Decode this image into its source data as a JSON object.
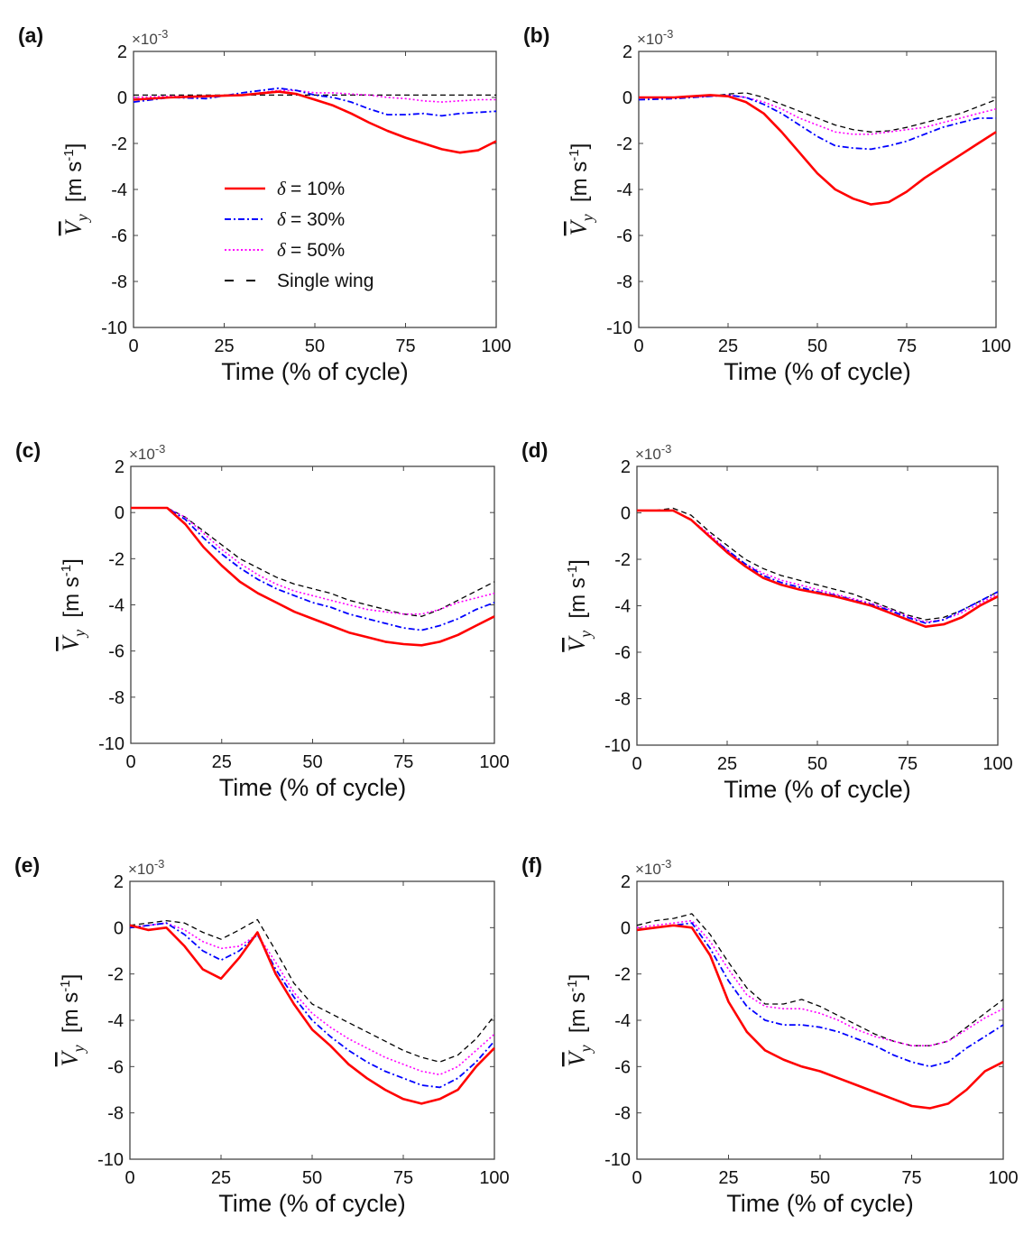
{
  "figure": {
    "x_label": "Time (% of cycle)",
    "y_label_symbol": "V",
    "y_label_subscript": "y",
    "y_label_units": "[m s",
    "y_label_units_exp": "-1",
    "y_label_units_close": "]",
    "multiplier_base": "×10",
    "multiplier_exp": "-3",
    "x_ticks": [
      "0",
      "25",
      "50",
      "75",
      "100"
    ],
    "y_ticks": [
      "2",
      "0",
      "-2",
      "-4",
      "-6",
      "-8",
      "-10"
    ]
  },
  "legend": [
    {
      "symbol": "δ",
      "label": "= 10%",
      "color": "#ff0000",
      "style": "solid"
    },
    {
      "symbol": "δ",
      "label": "= 30%",
      "color": "#0000ff",
      "style": "dashdot"
    },
    {
      "symbol": "δ",
      "label": "= 50%",
      "color": "#ff00ff",
      "style": "dotted"
    },
    {
      "symbol": "",
      "label": "Single wing",
      "color": "#000000",
      "style": "dashed"
    }
  ],
  "chart_data": [
    {
      "type": "line",
      "panel": "(a)",
      "xlabel": "Time (% of cycle)",
      "ylabel": "V_y [m s^-1]",
      "xlim": [
        0,
        100
      ],
      "ylim": [
        -10,
        2
      ],
      "y_multiplier": "×10^-3",
      "x": [
        0,
        10,
        20,
        30,
        40,
        45,
        50,
        55,
        60,
        65,
        70,
        75,
        80,
        85,
        90,
        95,
        100
      ],
      "series": [
        {
          "name": "δ = 10%",
          "values": [
            -0.1,
            0.0,
            0.05,
            0.1,
            0.25,
            0.15,
            -0.1,
            -0.35,
            -0.7,
            -1.1,
            -1.45,
            -1.75,
            -2.0,
            -2.25,
            -2.4,
            -2.3,
            -1.9
          ]
        },
        {
          "name": "δ = 30%",
          "values": [
            -0.2,
            0.0,
            -0.05,
            0.2,
            0.4,
            0.3,
            0.1,
            0.0,
            -0.2,
            -0.5,
            -0.75,
            -0.75,
            -0.7,
            -0.8,
            -0.7,
            -0.65,
            -0.6
          ]
        },
        {
          "name": "δ = 50%",
          "values": [
            0.0,
            0.05,
            0.05,
            0.1,
            0.3,
            0.3,
            0.2,
            0.2,
            0.15,
            0.1,
            0.0,
            -0.05,
            -0.15,
            -0.2,
            -0.15,
            -0.1,
            -0.1
          ]
        },
        {
          "name": "Single wing",
          "values": [
            0.1,
            0.1,
            0.1,
            0.1,
            0.1,
            0.1,
            0.1,
            0.1,
            0.1,
            0.1,
            0.1,
            0.1,
            0.1,
            0.1,
            0.1,
            0.1,
            0.1
          ]
        }
      ]
    },
    {
      "type": "line",
      "panel": "(b)",
      "xlabel": "Time (% of cycle)",
      "ylabel": "V_y [m s^-1]",
      "xlim": [
        0,
        100
      ],
      "ylim": [
        -10,
        2
      ],
      "y_multiplier": "×10^-3",
      "x": [
        0,
        10,
        20,
        25,
        30,
        35,
        40,
        45,
        50,
        55,
        60,
        65,
        70,
        75,
        80,
        85,
        90,
        95,
        100
      ],
      "series": [
        {
          "name": "δ = 10%",
          "values": [
            0.0,
            0.0,
            0.1,
            0.05,
            -0.2,
            -0.7,
            -1.5,
            -2.4,
            -3.3,
            -4.0,
            -4.4,
            -4.65,
            -4.55,
            -4.1,
            -3.5,
            -3.0,
            -2.5,
            -2.0,
            -1.5
          ]
        },
        {
          "name": "δ = 30%",
          "values": [
            -0.1,
            -0.05,
            0.05,
            0.1,
            0.0,
            -0.3,
            -0.7,
            -1.2,
            -1.7,
            -2.1,
            -2.2,
            -2.25,
            -2.1,
            -1.9,
            -1.6,
            -1.3,
            -1.1,
            -0.9,
            -0.9
          ]
        },
        {
          "name": "δ = 50%",
          "values": [
            0.0,
            0.0,
            0.05,
            0.1,
            0.0,
            -0.2,
            -0.5,
            -0.9,
            -1.2,
            -1.5,
            -1.6,
            -1.6,
            -1.5,
            -1.4,
            -1.3,
            -1.1,
            -0.9,
            -0.7,
            -0.5
          ]
        },
        {
          "name": "Single wing",
          "values": [
            0.0,
            0.0,
            0.05,
            0.15,
            0.2,
            0.0,
            -0.3,
            -0.6,
            -0.9,
            -1.2,
            -1.4,
            -1.5,
            -1.45,
            -1.3,
            -1.1,
            -0.9,
            -0.7,
            -0.4,
            -0.1
          ]
        }
      ]
    },
    {
      "type": "line",
      "panel": "(c)",
      "xlabel": "Time (% of cycle)",
      "ylabel": "V_y [m s^-1]",
      "xlim": [
        0,
        100
      ],
      "ylim": [
        -10,
        2
      ],
      "y_multiplier": "×10^-3",
      "x": [
        0,
        5,
        10,
        15,
        20,
        25,
        30,
        35,
        40,
        45,
        50,
        55,
        60,
        65,
        70,
        75,
        80,
        85,
        90,
        95,
        100
      ],
      "series": [
        {
          "name": "δ = 10%",
          "values": [
            0.2,
            0.2,
            0.2,
            -0.5,
            -1.5,
            -2.3,
            -3.0,
            -3.5,
            -3.9,
            -4.3,
            -4.6,
            -4.9,
            -5.2,
            -5.4,
            -5.6,
            -5.7,
            -5.75,
            -5.6,
            -5.3,
            -4.9,
            -4.5
          ]
        },
        {
          "name": "δ = 30%",
          "values": [
            0.2,
            0.2,
            0.2,
            -0.3,
            -1.1,
            -1.8,
            -2.4,
            -2.9,
            -3.3,
            -3.6,
            -3.9,
            -4.1,
            -4.4,
            -4.6,
            -4.8,
            -5.0,
            -5.1,
            -4.9,
            -4.6,
            -4.2,
            -3.9
          ]
        },
        {
          "name": "δ = 50%",
          "values": [
            0.2,
            0.2,
            0.2,
            -0.2,
            -0.9,
            -1.6,
            -2.2,
            -2.7,
            -3.1,
            -3.4,
            -3.6,
            -3.8,
            -4.0,
            -4.2,
            -4.3,
            -4.4,
            -4.4,
            -4.2,
            -3.9,
            -3.7,
            -3.5
          ]
        },
        {
          "name": "Single wing",
          "values": [
            0.2,
            0.2,
            0.2,
            -0.2,
            -0.8,
            -1.4,
            -2.0,
            -2.4,
            -2.8,
            -3.1,
            -3.3,
            -3.5,
            -3.8,
            -4.0,
            -4.2,
            -4.4,
            -4.5,
            -4.2,
            -3.8,
            -3.4,
            -3.0
          ]
        }
      ]
    },
    {
      "type": "line",
      "panel": "(d)",
      "xlabel": "Time (% of cycle)",
      "ylabel": "V_y [m s^-1]",
      "xlim": [
        0,
        100
      ],
      "ylim": [
        -10,
        2
      ],
      "y_multiplier": "×10^-3",
      "x": [
        0,
        5,
        10,
        15,
        20,
        25,
        30,
        35,
        40,
        45,
        50,
        55,
        60,
        65,
        70,
        75,
        80,
        85,
        90,
        95,
        100
      ],
      "series": [
        {
          "name": "δ = 10%",
          "values": [
            0.1,
            0.1,
            0.1,
            -0.3,
            -1.0,
            -1.7,
            -2.3,
            -2.8,
            -3.1,
            -3.3,
            -3.45,
            -3.6,
            -3.8,
            -4.0,
            -4.3,
            -4.6,
            -4.9,
            -4.8,
            -4.5,
            -4.0,
            -3.6
          ]
        },
        {
          "name": "δ = 30%",
          "values": [
            0.1,
            0.1,
            0.1,
            -0.3,
            -1.0,
            -1.6,
            -2.2,
            -2.7,
            -3.0,
            -3.2,
            -3.4,
            -3.55,
            -3.75,
            -3.95,
            -4.2,
            -4.5,
            -4.75,
            -4.6,
            -4.2,
            -3.8,
            -3.4
          ]
        },
        {
          "name": "δ = 50%",
          "values": [
            0.1,
            0.1,
            0.1,
            -0.3,
            -0.9,
            -1.6,
            -2.2,
            -2.6,
            -2.9,
            -3.1,
            -3.3,
            -3.5,
            -3.7,
            -3.9,
            -4.15,
            -4.45,
            -4.7,
            -4.6,
            -4.3,
            -3.9,
            -3.5
          ]
        },
        {
          "name": "Single wing",
          "values": [
            0.1,
            0.1,
            0.2,
            -0.1,
            -0.8,
            -1.4,
            -2.0,
            -2.4,
            -2.7,
            -2.9,
            -3.1,
            -3.3,
            -3.5,
            -3.8,
            -4.1,
            -4.4,
            -4.6,
            -4.5,
            -4.2,
            -3.8,
            -3.4
          ]
        }
      ]
    },
    {
      "type": "line",
      "panel": "(e)",
      "xlabel": "Time (% of cycle)",
      "ylabel": "V_y [m s^-1]",
      "xlim": [
        0,
        100
      ],
      "ylim": [
        -10,
        2
      ],
      "y_multiplier": "×10^-3",
      "x": [
        0,
        5,
        10,
        15,
        20,
        25,
        30,
        35,
        40,
        45,
        50,
        55,
        60,
        65,
        70,
        75,
        80,
        85,
        90,
        95,
        100
      ],
      "series": [
        {
          "name": "δ = 10%",
          "values": [
            0.1,
            -0.1,
            0.0,
            -0.8,
            -1.8,
            -2.2,
            -1.3,
            -0.2,
            -2.0,
            -3.3,
            -4.4,
            -5.1,
            -5.9,
            -6.5,
            -7.0,
            -7.4,
            -7.6,
            -7.4,
            -7.0,
            -6.0,
            -5.2
          ]
        },
        {
          "name": "δ = 30%",
          "values": [
            0.0,
            0.1,
            0.2,
            -0.3,
            -1.0,
            -1.4,
            -1.0,
            -0.3,
            -1.8,
            -3.0,
            -4.0,
            -4.7,
            -5.3,
            -5.8,
            -6.2,
            -6.5,
            -6.8,
            -6.9,
            -6.5,
            -5.8,
            -4.9
          ]
        },
        {
          "name": "δ = 50%",
          "values": [
            0.0,
            0.1,
            0.2,
            -0.1,
            -0.6,
            -0.9,
            -0.8,
            -0.3,
            -1.5,
            -2.8,
            -3.7,
            -4.3,
            -4.8,
            -5.2,
            -5.6,
            -5.9,
            -6.2,
            -6.35,
            -6.0,
            -5.3,
            -4.6
          ]
        },
        {
          "name": "Single wing",
          "values": [
            0.1,
            0.2,
            0.3,
            0.2,
            -0.2,
            -0.5,
            -0.1,
            0.35,
            -1.0,
            -2.4,
            -3.3,
            -3.7,
            -4.1,
            -4.5,
            -4.9,
            -5.3,
            -5.6,
            -5.8,
            -5.5,
            -4.8,
            -3.8
          ]
        }
      ]
    },
    {
      "type": "line",
      "panel": "(f)",
      "xlabel": "Time (% of cycle)",
      "ylabel": "V_y [m s^-1]",
      "xlim": [
        0,
        100
      ],
      "ylim": [
        -10,
        2
      ],
      "y_multiplier": "×10^-3",
      "x": [
        0,
        5,
        10,
        15,
        20,
        25,
        30,
        35,
        40,
        45,
        50,
        55,
        60,
        65,
        70,
        75,
        80,
        85,
        90,
        95,
        100
      ],
      "series": [
        {
          "name": "δ = 10%",
          "values": [
            -0.1,
            0.0,
            0.1,
            0.0,
            -1.2,
            -3.2,
            -4.5,
            -5.3,
            -5.7,
            -6.0,
            -6.2,
            -6.5,
            -6.8,
            -7.1,
            -7.4,
            -7.7,
            -7.8,
            -7.6,
            -7.0,
            -6.2,
            -5.8
          ]
        },
        {
          "name": "δ = 30%",
          "values": [
            -0.1,
            0.0,
            0.1,
            0.2,
            -0.9,
            -2.3,
            -3.4,
            -4.0,
            -4.2,
            -4.2,
            -4.3,
            -4.5,
            -4.8,
            -5.1,
            -5.5,
            -5.8,
            -6.0,
            -5.8,
            -5.2,
            -4.7,
            -4.2
          ]
        },
        {
          "name": "δ = 50%",
          "values": [
            0.0,
            0.1,
            0.2,
            0.3,
            -0.6,
            -1.8,
            -2.9,
            -3.4,
            -3.5,
            -3.5,
            -3.7,
            -4.0,
            -4.4,
            -4.7,
            -4.9,
            -5.1,
            -5.1,
            -4.9,
            -4.4,
            -3.9,
            -3.5
          ]
        },
        {
          "name": "Single wing",
          "values": [
            0.1,
            0.3,
            0.4,
            0.6,
            -0.3,
            -1.5,
            -2.6,
            -3.3,
            -3.3,
            -3.1,
            -3.4,
            -3.8,
            -4.2,
            -4.6,
            -4.9,
            -5.1,
            -5.1,
            -4.9,
            -4.3,
            -3.7,
            -3.1
          ]
        }
      ]
    }
  ]
}
